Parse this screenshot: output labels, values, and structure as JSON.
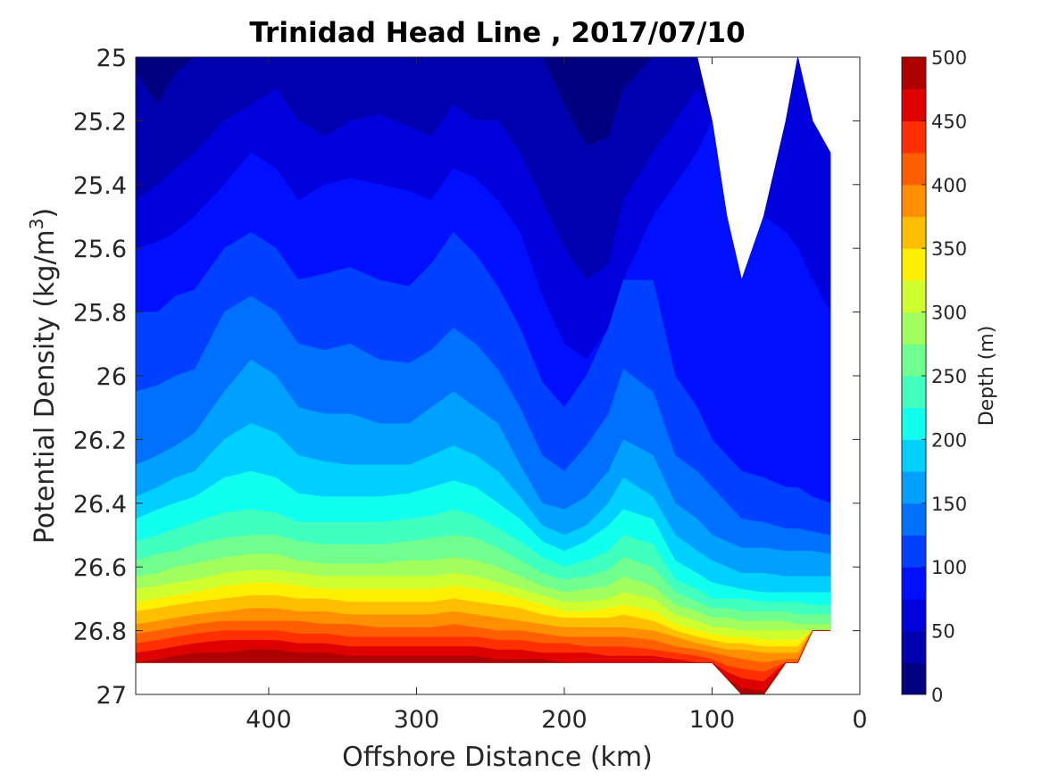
{
  "chart_data": {
    "type": "contourf",
    "title": "Trinidad Head Line , 2017/07/10",
    "xlabel": "Offshore Distance (km)",
    "ylabel_main": "Potential Density (kg/m",
    "ylabel_sup": "3",
    "ylabel_close": ")",
    "x_reversed": true,
    "xlim": [
      0,
      490
    ],
    "y_reversed": true,
    "ylim": [
      25,
      27
    ],
    "xticks": [
      400,
      300,
      200,
      100,
      0
    ],
    "xtick_labels": [
      "400",
      "300",
      "200",
      "100",
      "0"
    ],
    "yticks": [
      25,
      25.2,
      25.4,
      25.6,
      25.8,
      26,
      26.2,
      26.4,
      26.6,
      26.8,
      27
    ],
    "ytick_labels": [
      "25",
      "25.2",
      "25.4",
      "25.6",
      "25.8",
      "26",
      "26.2",
      "26.4",
      "26.6",
      "26.8",
      "27"
    ],
    "colorbar": {
      "label": "Depth (m)",
      "range": [
        0,
        500
      ],
      "ticks": [
        0,
        50,
        100,
        150,
        200,
        250,
        300,
        350,
        400,
        450,
        500
      ],
      "tick_labels": [
        "0",
        "50",
        "100",
        "150",
        "200",
        "250",
        "300",
        "350",
        "400",
        "450",
        "500"
      ],
      "level_step": 25,
      "colors": [
        "#000080",
        "#0000b0",
        "#0000dd",
        "#0010ff",
        "#0040ff",
        "#0070ff",
        "#00a0ff",
        "#00d0ff",
        "#10ffef",
        "#40ffbf",
        "#70ff8f",
        "#a0ff5f",
        "#d0ff2f",
        "#ffef00",
        "#ffbf00",
        "#ff8f00",
        "#ff5f00",
        "#ff2f00",
        "#df0000",
        "#af0000"
      ]
    },
    "x_stations": [
      490,
      475,
      463,
      450,
      430,
      412,
      395,
      380,
      362,
      345,
      325,
      305,
      290,
      275,
      260,
      245,
      230,
      215,
      200,
      185,
      170,
      160,
      140,
      125,
      110,
      100,
      90,
      80,
      65,
      50,
      42,
      32,
      20
    ],
    "depth_contours": [
      {
        "depth": 25,
        "density": [
          25.05,
          25.15,
          25.05,
          25.0,
          25.0,
          25.0,
          25.0,
          25.0,
          25.0,
          25.0,
          25.0,
          25.0,
          25.0,
          25.0,
          25.0,
          25.0,
          25.0,
          25.0,
          25.15,
          25.28,
          25.25,
          25.1,
          25.0,
          25.0,
          25.0,
          25.0,
          25.0,
          25.0,
          25.0,
          25.0,
          25.0,
          25.0,
          25.0
        ]
      },
      {
        "depth": 50,
        "density": [
          25.45,
          25.4,
          25.35,
          25.3,
          25.2,
          25.15,
          25.1,
          25.2,
          25.25,
          25.2,
          25.18,
          25.22,
          25.25,
          25.15,
          25.2,
          25.2,
          25.3,
          25.45,
          25.6,
          25.7,
          25.65,
          25.45,
          25.3,
          25.2,
          25.1,
          25.0,
          25.0,
          25.0,
          25.0,
          25.0,
          25.0,
          25.0,
          25.0
        ]
      },
      {
        "depth": 75,
        "density": [
          25.6,
          25.58,
          25.55,
          25.5,
          25.4,
          25.3,
          25.35,
          25.45,
          25.4,
          25.38,
          25.4,
          25.42,
          25.45,
          25.35,
          25.38,
          25.45,
          25.55,
          25.75,
          25.9,
          25.95,
          25.85,
          25.7,
          25.5,
          25.4,
          25.3,
          25.2,
          25.2,
          25.3,
          25.45,
          25.55,
          25.6,
          25.7,
          25.8
        ]
      },
      {
        "depth": 100,
        "density": [
          25.8,
          25.8,
          25.75,
          25.73,
          25.6,
          25.55,
          25.6,
          25.7,
          25.68,
          25.66,
          25.7,
          25.72,
          25.65,
          25.55,
          25.62,
          25.72,
          25.85,
          26.02,
          26.1,
          26.0,
          25.85,
          25.7,
          25.7,
          26.0,
          26.1,
          26.2,
          26.25,
          26.3,
          26.32,
          26.35,
          26.35,
          26.38,
          26.4
        ]
      },
      {
        "depth": 125,
        "density": [
          26.05,
          26.03,
          26.0,
          25.98,
          25.8,
          25.75,
          25.8,
          25.9,
          25.92,
          25.9,
          25.95,
          25.96,
          25.92,
          25.85,
          25.9,
          25.98,
          26.1,
          26.25,
          26.3,
          26.22,
          26.12,
          25.98,
          26.05,
          26.25,
          26.3,
          26.35,
          26.4,
          26.45,
          26.46,
          26.48,
          26.48,
          26.49,
          26.5
        ]
      },
      {
        "depth": 150,
        "density": [
          26.28,
          26.25,
          26.22,
          26.18,
          26.05,
          25.95,
          26.0,
          26.1,
          26.12,
          26.12,
          26.15,
          26.15,
          26.1,
          26.05,
          26.1,
          26.15,
          26.28,
          26.4,
          26.42,
          26.38,
          26.3,
          26.2,
          26.25,
          26.4,
          26.45,
          26.5,
          26.52,
          26.54,
          26.54,
          26.55,
          26.55,
          26.55,
          26.56
        ]
      },
      {
        "depth": 175,
        "density": [
          26.38,
          26.35,
          26.32,
          26.3,
          26.2,
          26.15,
          26.18,
          26.25,
          26.27,
          26.28,
          26.28,
          26.28,
          26.25,
          26.22,
          26.25,
          26.3,
          26.38,
          26.47,
          26.5,
          26.47,
          26.4,
          26.32,
          26.38,
          26.5,
          26.55,
          26.58,
          26.6,
          26.62,
          26.62,
          26.63,
          26.63,
          26.63,
          26.63
        ]
      },
      {
        "depth": 200,
        "density": [
          26.45,
          26.42,
          26.4,
          26.38,
          26.32,
          26.3,
          26.32,
          26.37,
          26.38,
          26.38,
          26.38,
          26.37,
          26.35,
          26.33,
          26.35,
          26.4,
          26.45,
          26.52,
          26.55,
          26.52,
          26.47,
          26.42,
          26.45,
          26.58,
          26.62,
          26.65,
          26.66,
          26.67,
          26.68,
          26.68,
          26.68,
          26.68,
          26.68
        ]
      },
      {
        "depth": 225,
        "density": [
          26.52,
          26.5,
          26.48,
          26.46,
          26.43,
          26.42,
          26.43,
          26.46,
          26.46,
          26.46,
          26.46,
          26.45,
          26.44,
          26.42,
          26.44,
          26.48,
          26.52,
          26.57,
          26.6,
          26.58,
          26.55,
          26.5,
          26.53,
          26.64,
          26.67,
          26.7,
          26.7,
          26.7,
          26.71,
          26.71,
          26.71,
          26.72,
          26.72
        ]
      },
      {
        "depth": 250,
        "density": [
          26.58,
          26.56,
          26.55,
          26.53,
          26.51,
          26.5,
          26.5,
          26.52,
          26.53,
          26.53,
          26.53,
          26.52,
          26.51,
          26.5,
          26.51,
          26.54,
          26.58,
          26.62,
          26.64,
          26.63,
          26.61,
          26.57,
          26.6,
          26.68,
          26.71,
          26.73,
          26.73,
          26.74,
          26.74,
          26.74,
          26.75,
          26.75,
          26.75
        ]
      },
      {
        "depth": 275,
        "density": [
          26.63,
          26.62,
          26.6,
          26.59,
          26.57,
          26.56,
          26.56,
          26.58,
          26.59,
          26.59,
          26.59,
          26.58,
          26.58,
          26.57,
          26.58,
          26.6,
          26.63,
          26.66,
          26.68,
          26.67,
          26.66,
          26.63,
          26.66,
          26.72,
          26.74,
          26.76,
          26.76,
          26.77,
          26.77,
          26.77,
          26.78,
          26.78,
          26.78
        ]
      },
      {
        "depth": 300,
        "density": [
          26.67,
          26.66,
          26.65,
          26.64,
          26.62,
          26.61,
          26.61,
          26.62,
          26.63,
          26.63,
          26.63,
          26.63,
          26.63,
          26.62,
          26.63,
          26.65,
          26.67,
          26.69,
          26.71,
          26.71,
          26.7,
          26.68,
          26.7,
          26.75,
          26.77,
          26.79,
          26.79,
          26.8,
          26.8,
          26.8,
          26.8,
          26.81,
          26.81
        ]
      },
      {
        "depth": 325,
        "density": [
          26.71,
          26.7,
          26.69,
          26.68,
          26.66,
          26.65,
          26.65,
          26.66,
          26.67,
          26.67,
          26.67,
          26.67,
          26.67,
          26.66,
          26.67,
          26.68,
          26.7,
          26.72,
          26.74,
          26.74,
          26.73,
          26.72,
          26.74,
          26.78,
          26.8,
          26.81,
          26.82,
          26.82,
          26.83,
          26.83,
          26.83,
          26.83,
          26.83
        ]
      },
      {
        "depth": 350,
        "density": [
          26.74,
          26.73,
          26.72,
          26.71,
          26.7,
          26.69,
          26.69,
          26.7,
          26.7,
          26.71,
          26.71,
          26.71,
          26.71,
          26.7,
          26.71,
          26.72,
          26.73,
          26.75,
          26.76,
          26.76,
          26.76,
          26.75,
          26.77,
          26.8,
          26.82,
          26.83,
          26.84,
          26.84,
          26.85,
          26.85,
          26.85,
          26.85,
          26.85
        ]
      },
      {
        "depth": 375,
        "density": [
          26.78,
          26.77,
          26.76,
          26.75,
          26.74,
          26.73,
          26.73,
          26.74,
          26.74,
          26.75,
          26.75,
          26.75,
          26.75,
          26.74,
          26.75,
          26.76,
          26.77,
          26.78,
          26.79,
          26.79,
          26.79,
          26.79,
          26.8,
          26.82,
          26.84,
          26.85,
          26.86,
          26.86,
          26.87,
          26.87,
          26.87,
          26.87,
          26.88
        ]
      },
      {
        "depth": 400,
        "density": [
          26.81,
          26.8,
          26.79,
          26.78,
          26.77,
          26.77,
          26.77,
          26.77,
          26.78,
          26.78,
          26.79,
          26.79,
          26.79,
          26.78,
          26.79,
          26.8,
          26.8,
          26.81,
          26.82,
          26.82,
          26.82,
          26.82,
          26.83,
          26.85,
          26.86,
          26.87,
          26.88,
          26.89,
          26.9,
          26.89,
          26.89,
          26.89,
          26.9
        ]
      },
      {
        "depth": 425,
        "density": [
          26.84,
          26.83,
          26.82,
          26.81,
          26.8,
          26.8,
          26.8,
          26.81,
          26.81,
          26.82,
          26.82,
          26.82,
          26.82,
          26.82,
          26.82,
          26.83,
          26.83,
          26.84,
          26.84,
          26.85,
          26.85,
          26.85,
          26.86,
          26.87,
          26.88,
          26.89,
          26.91,
          26.92,
          26.93,
          26.92,
          26.91,
          26.91,
          26.91
        ]
      },
      {
        "depth": 450,
        "density": [
          26.87,
          26.86,
          26.85,
          26.84,
          26.83,
          26.83,
          26.83,
          26.84,
          26.84,
          26.85,
          26.85,
          26.85,
          26.85,
          26.85,
          26.85,
          26.86,
          26.86,
          26.87,
          26.87,
          26.87,
          26.88,
          26.88,
          26.88,
          26.89,
          26.9,
          26.91,
          26.93,
          26.95,
          26.96,
          26.94,
          26.93,
          26.93,
          26.93
        ]
      },
      {
        "depth": 475,
        "density": [
          26.9,
          26.89,
          26.88,
          26.87,
          26.87,
          26.86,
          26.86,
          26.87,
          26.87,
          26.88,
          26.88,
          26.88,
          26.88,
          26.88,
          26.88,
          26.89,
          26.89,
          26.89,
          26.9,
          26.9,
          26.9,
          26.9,
          26.9,
          26.9,
          26.9,
          26.9,
          26.95,
          26.98,
          26.99,
          26.97,
          26.95,
          26.95,
          26.95
        ]
      }
    ],
    "max_density_boundary": [
      26.9,
      26.9,
      26.9,
      26.9,
      26.9,
      26.9,
      26.9,
      26.9,
      26.9,
      26.9,
      26.9,
      26.9,
      26.9,
      26.9,
      26.9,
      26.9,
      26.9,
      26.9,
      26.9,
      26.9,
      26.9,
      26.9,
      26.9,
      26.9,
      26.9,
      26.9,
      26.95,
      27.0,
      27.0,
      26.9,
      26.9,
      26.8,
      26.8
    ],
    "min_density_boundary": [
      25.0,
      25.0,
      25.0,
      25.0,
      25.0,
      25.0,
      25.0,
      25.0,
      25.0,
      25.0,
      25.0,
      25.0,
      25.0,
      25.0,
      25.0,
      25.0,
      25.0,
      25.0,
      25.0,
      25.0,
      25.0,
      25.0,
      25.0,
      25.0,
      25.0,
      25.2,
      25.5,
      25.7,
      25.5,
      25.2,
      25.0,
      25.2,
      25.3
    ],
    "data_extent_x": [
      20,
      490
    ]
  }
}
